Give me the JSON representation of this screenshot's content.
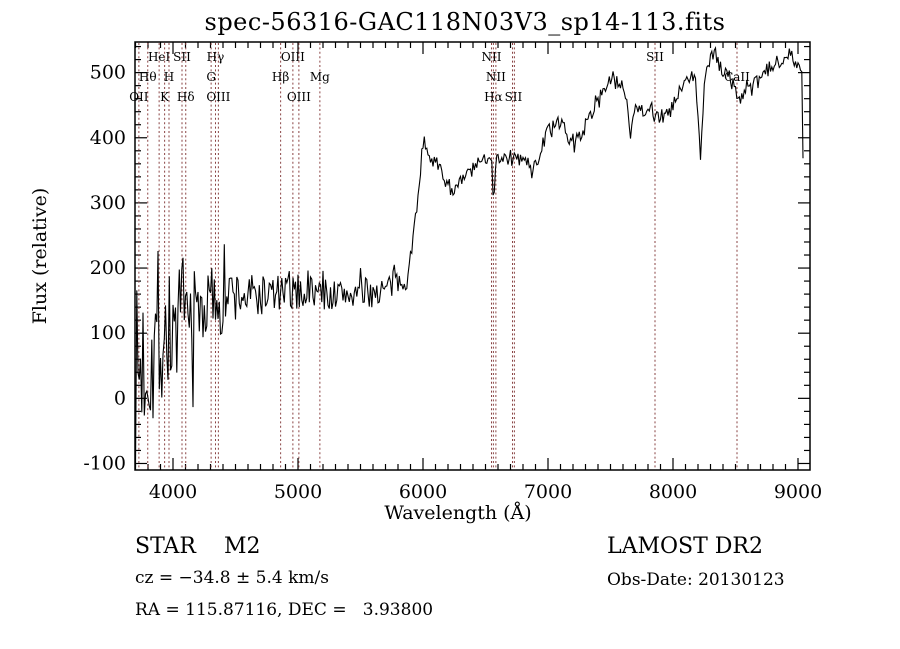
{
  "title": "spec-56316-GAC118N03V3_sp14-113.fits",
  "chart_data": {
    "type": "line",
    "title": "spec-56316-GAC118N03V3_sp14-113.fits",
    "xlabel": "Wavelength (Å)",
    "ylabel": "Flux (relative)",
    "legend": "none",
    "grid": "off",
    "line_color": "#000000",
    "spectral_line_color": "#8a4343",
    "x_axis": {
      "min": 3696,
      "max": 9096,
      "major_ticks": [
        4000,
        5000,
        6000,
        7000,
        8000,
        9000
      ],
      "minor_start": 3700,
      "minor_step": 100,
      "minor_end": 9090
    },
    "y_axis": {
      "min": -110,
      "max": 547,
      "major_ticks": [
        -100,
        0,
        100,
        200,
        300,
        400,
        500
      ],
      "minor_start": -100,
      "minor_step": 20,
      "minor_end": 540
    },
    "spectral_lines": [
      {
        "label": "OII",
        "row": 3,
        "wavelengths": [
          3727
        ]
      },
      {
        "label": "Hθ",
        "row": 2,
        "wavelengths": [
          3798
        ]
      },
      {
        "label": "HeI",
        "row": 1,
        "wavelengths": [
          3889
        ]
      },
      {
        "label": "K",
        "row": 3,
        "wavelengths": [
          3933
        ]
      },
      {
        "label": "H",
        "row": 2,
        "wavelengths": [
          3968
        ]
      },
      {
        "label": "SII",
        "row": 1,
        "wavelengths": [
          4072
        ]
      },
      {
        "label": "Hδ",
        "row": 3,
        "wavelengths": [
          4102
        ]
      },
      {
        "label": "G",
        "row": 2,
        "wavelengths": [
          4305
        ]
      },
      {
        "label": "Hγ",
        "row": 1,
        "wavelengths": [
          4340
        ]
      },
      {
        "label": "OIII",
        "row": 3,
        "wavelengths": [
          4363
        ]
      },
      {
        "label": "Hβ",
        "row": 2,
        "wavelengths": [
          4861
        ]
      },
      {
        "label": "OIII",
        "row": 1,
        "wavelengths": [
          4959
        ]
      },
      {
        "label": "OIII",
        "row": 3,
        "wavelengths": [
          5007
        ]
      },
      {
        "label": "Mg",
        "row": 2,
        "wavelengths": [
          5175
        ]
      },
      {
        "label": "NII",
        "row": 1,
        "wavelengths": [
          6548
        ]
      },
      {
        "label": "Hα",
        "row": 3,
        "wavelengths": [
          6563
        ]
      },
      {
        "label": "NII",
        "row": 2,
        "wavelengths": [
          6583
        ]
      },
      {
        "label": "SII",
        "row": 3,
        "wavelengths": [
          6716,
          6731
        ]
      },
      {
        "label": "SII",
        "row": 1,
        "wavelengths": [
          7856
        ]
      },
      {
        "label": "CaII",
        "row": 2,
        "wavelengths": [
          8512
        ]
      }
    ],
    "spectrum_envelope": {
      "comment": "Noisy stellar spectrum approximated as [wavelength_A, mean_flux, noise_amplitude] anchors; flux values read from plot axes",
      "sample_step_A": 10,
      "noise_seed": 7,
      "flux_clamp": [
        -105,
        545
      ],
      "anchors": [
        [
          3700,
          20,
          145
        ],
        [
          3740,
          45,
          150
        ],
        [
          3780,
          65,
          140
        ],
        [
          3820,
          75,
          135
        ],
        [
          3860,
          85,
          125
        ],
        [
          3900,
          92,
          115
        ],
        [
          3940,
          100,
          105
        ],
        [
          3980,
          105,
          100
        ],
        [
          4020,
          110,
          95
        ],
        [
          4060,
          115,
          90
        ],
        [
          4100,
          118,
          88
        ],
        [
          4150,
          122,
          82
        ],
        [
          4200,
          132,
          72
        ],
        [
          4250,
          142,
          62
        ],
        [
          4300,
          150,
          55
        ],
        [
          4350,
          153,
          50
        ],
        [
          4400,
          156,
          48
        ],
        [
          4500,
          158,
          44
        ],
        [
          4600,
          157,
          38
        ],
        [
          4700,
          158,
          34
        ],
        [
          4800,
          161,
          31
        ],
        [
          4900,
          160,
          29
        ],
        [
          5000,
          163,
          28
        ],
        [
          5100,
          165,
          27
        ],
        [
          5200,
          161,
          26
        ],
        [
          5300,
          158,
          25
        ],
        [
          5400,
          161,
          25
        ],
        [
          5500,
          160,
          24
        ],
        [
          5600,
          163,
          23
        ],
        [
          5700,
          167,
          22
        ],
        [
          5800,
          178,
          21
        ],
        [
          5880,
          190,
          20
        ],
        [
          5920,
          240,
          18
        ],
        [
          5960,
          320,
          15
        ],
        [
          5995,
          380,
          13
        ],
        [
          6020,
          390,
          12
        ],
        [
          6070,
          370,
          12
        ],
        [
          6120,
          355,
          12
        ],
        [
          6170,
          338,
          12
        ],
        [
          6220,
          324,
          12
        ],
        [
          6270,
          321,
          12
        ],
        [
          6320,
          336,
          12
        ],
        [
          6370,
          348,
          12
        ],
        [
          6420,
          354,
          12
        ],
        [
          6470,
          363,
          12
        ],
        [
          6520,
          372,
          11
        ],
        [
          6548,
          374,
          11
        ],
        [
          6563,
          305,
          8
        ],
        [
          6585,
          366,
          11
        ],
        [
          6640,
          372,
          11
        ],
        [
          6700,
          366,
          11
        ],
        [
          6760,
          368,
          11
        ],
        [
          6820,
          365,
          11
        ],
        [
          6870,
          352,
          10
        ],
        [
          6910,
          362,
          10
        ],
        [
          6950,
          385,
          11
        ],
        [
          7000,
          412,
          11
        ],
        [
          7060,
          424,
          11
        ],
        [
          7120,
          415,
          11
        ],
        [
          7170,
          398,
          11
        ],
        [
          7220,
          396,
          11
        ],
        [
          7270,
          408,
          11
        ],
        [
          7320,
          425,
          11
        ],
        [
          7370,
          448,
          12
        ],
        [
          7420,
          468,
          12
        ],
        [
          7470,
          482,
          12
        ],
        [
          7520,
          490,
          12
        ],
        [
          7570,
          482,
          12
        ],
        [
          7620,
          470,
          12
        ],
        [
          7660,
          408,
          10
        ],
        [
          7700,
          452,
          12
        ],
        [
          7760,
          442,
          12
        ],
        [
          7820,
          446,
          12
        ],
        [
          7880,
          436,
          13
        ],
        [
          7940,
          430,
          13
        ],
        [
          8000,
          448,
          13
        ],
        [
          8060,
          472,
          13
        ],
        [
          8120,
          490,
          12
        ],
        [
          8180,
          492,
          12
        ],
        [
          8220,
          372,
          8
        ],
        [
          8255,
          495,
          12
        ],
        [
          8300,
          522,
          10
        ],
        [
          8340,
          528,
          10
        ],
        [
          8390,
          505,
          12
        ],
        [
          8450,
          494,
          12
        ],
        [
          8510,
          468,
          12
        ],
        [
          8545,
          458,
          12
        ],
        [
          8580,
          478,
          12
        ],
        [
          8630,
          476,
          12
        ],
        [
          8690,
          488,
          12
        ],
        [
          8750,
          502,
          12
        ],
        [
          8810,
          512,
          12
        ],
        [
          8870,
          522,
          12
        ],
        [
          8930,
          532,
          9
        ],
        [
          8970,
          520,
          10
        ],
        [
          9010,
          506,
          10
        ],
        [
          9036,
          495,
          8
        ],
        [
          9042,
          300,
          4
        ],
        [
          9048,
          138,
          3
        ]
      ]
    }
  },
  "annotations": {
    "class_line": "STAR    M2",
    "cz_line": "cz = −34.8 ± 5.4 km/s",
    "radec_line": "RA = 115.87116, DEC =   3.93800",
    "survey": "LAMOST DR2",
    "obsdate": "Obs-Date: 20130123"
  }
}
